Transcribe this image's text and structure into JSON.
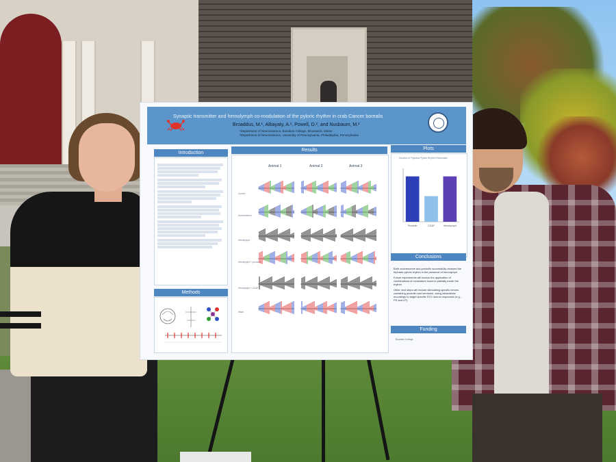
{
  "scene": {
    "description_tag": "outdoor-poster-presentation"
  },
  "poster": {
    "title": "Synaptic transmitter and hemolymph co-modulation of the pyloric rhythm in crab Cancer borealis",
    "authors": "Broaddus, M.¹, Albayaty, A.¹, Powell, D.², and Nusbaum, M.²",
    "affiliation_1": "¹Department of Neuroscience, Bowdoin College, Brunswick, Maine",
    "affiliation_2": "²Department of Neuroscience, University of Pennsylvania, Philadelphia, Pennsylvania",
    "sections": {
      "introduction": "Introduction",
      "methods": "Methods",
      "results": "Results",
      "plots": "Plots",
      "conclusions": "Conclusions",
      "funding": "Funding"
    },
    "results": {
      "animals": [
        "Animal 1",
        "Animal 2",
        "Animal 3"
      ],
      "rows": [
        "Control",
        "Decentralized",
        "Hemolymph",
        "Hemolymph + proctolin",
        "Hemolymph + CCAP",
        "Wash"
      ]
    },
    "plot": {
      "title": "Duration of Triphasic Pyloric Rhythm Restoration",
      "categories": [
        "Proctolin",
        "CCAP",
        "Hemolymph"
      ],
      "bars": [
        0.85,
        0.48,
        0.85
      ],
      "bar_colors": [
        "#2c3fb8",
        "#8fc0ea",
        "#5b3fb3"
      ]
    },
    "conclusions": [
      "Both oxotremorine and proctolin successfully restored the triphasic pyloric rhythm in the presence of hemolymph",
      "Future experiments will involve the application of combinations of modulators found to partially excite the rhythm",
      "Other next steps will include stimulating specific nerves containing proctolin and serotonin, doing intracellular recordings to target specific STG neuron responses (e.g., PD and LP)."
    ],
    "funding_text": "Bowdoin College"
  },
  "colors": {
    "banner": "#5b95c9",
    "section_header": "#4d86c0"
  }
}
